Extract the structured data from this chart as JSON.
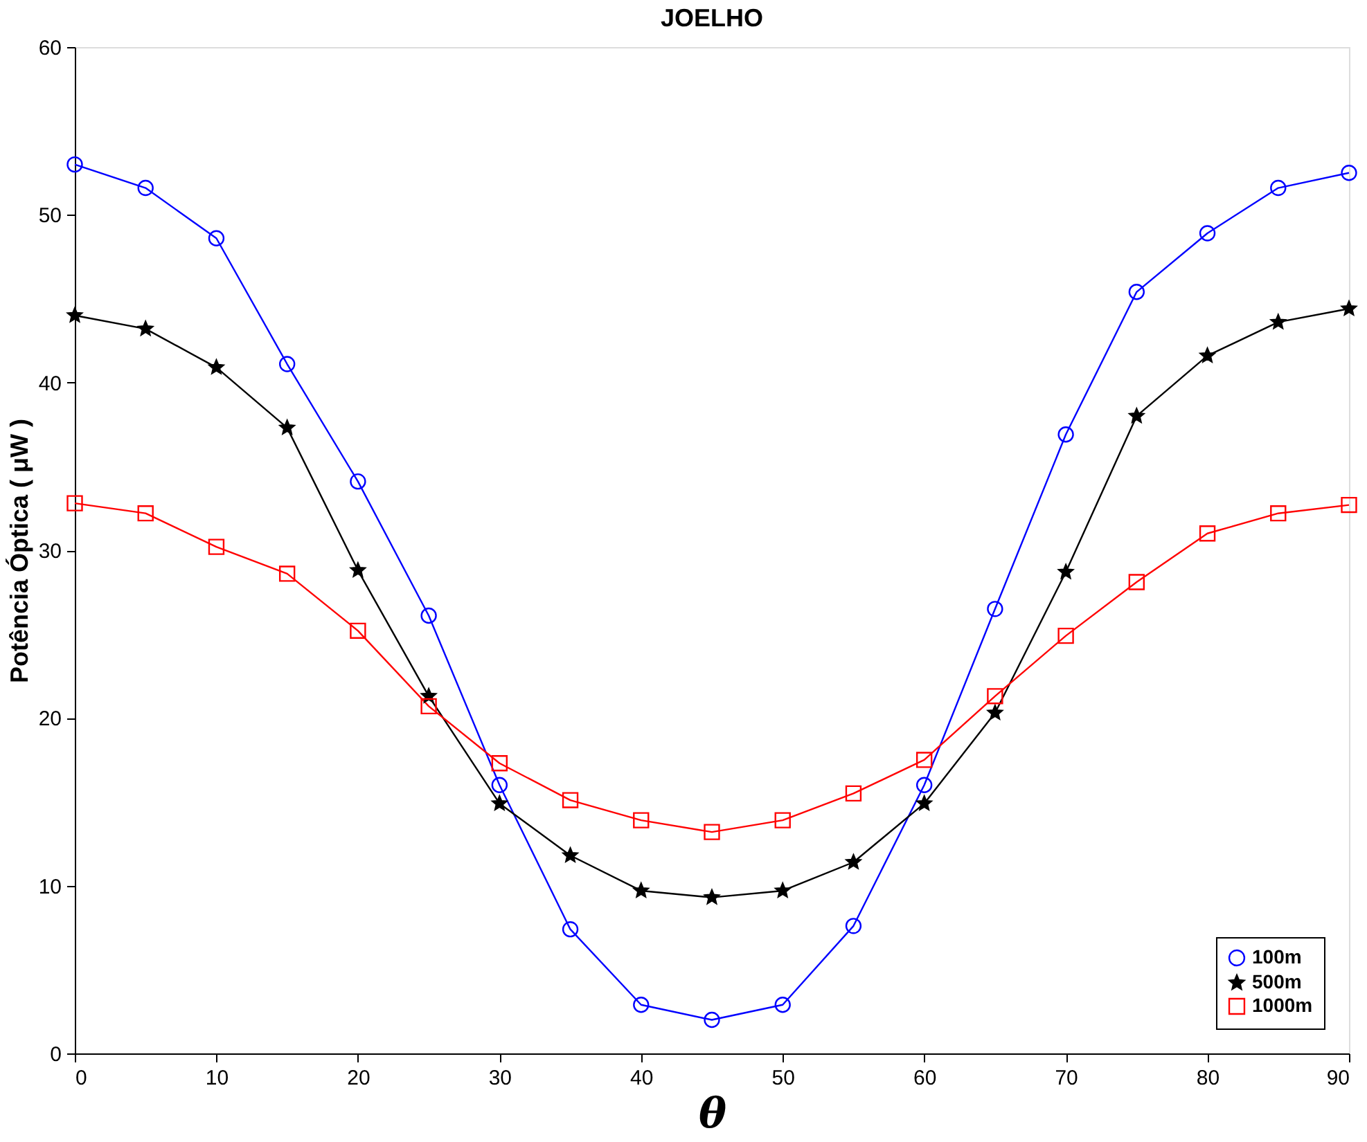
{
  "chart_data": {
    "type": "line",
    "title": "JOELHO",
    "xlabel": "θ",
    "ylabel": "Potência Óptica ( μW )",
    "x": [
      0,
      5,
      10,
      15,
      20,
      25,
      30,
      35,
      40,
      45,
      50,
      55,
      60,
      65,
      70,
      75,
      80,
      85,
      90
    ],
    "series": [
      {
        "name": "100m",
        "color": "#0000ff",
        "marker": "circle",
        "values": [
          53.0,
          51.6,
          48.6,
          41.1,
          34.1,
          26.1,
          16.0,
          7.4,
          2.9,
          2.0,
          2.9,
          7.6,
          16.0,
          26.5,
          36.9,
          45.4,
          48.9,
          51.6,
          52.5
        ]
      },
      {
        "name": "500m",
        "color": "#000000",
        "marker": "star",
        "values": [
          44.0,
          43.2,
          40.9,
          37.3,
          28.8,
          21.3,
          14.9,
          11.8,
          9.7,
          9.3,
          9.7,
          11.4,
          14.9,
          20.3,
          28.7,
          38.0,
          41.6,
          43.6,
          44.4
        ]
      },
      {
        "name": "1000m",
        "color": "#ff0000",
        "marker": "square",
        "values": [
          32.8,
          32.2,
          30.2,
          28.6,
          25.2,
          20.7,
          17.3,
          15.1,
          13.9,
          13.2,
          13.9,
          15.5,
          17.5,
          21.3,
          24.9,
          28.1,
          31.0,
          32.2,
          32.7
        ]
      }
    ],
    "xlim": [
      0,
      90
    ],
    "xticks": [
      0,
      10,
      20,
      30,
      40,
      50,
      60,
      70,
      80,
      90
    ],
    "ylim": [
      0,
      60
    ],
    "yticks": [
      0,
      10,
      20,
      30,
      40,
      50,
      60
    ],
    "grid": false,
    "legend": "bottom right",
    "line_style": "solid"
  }
}
